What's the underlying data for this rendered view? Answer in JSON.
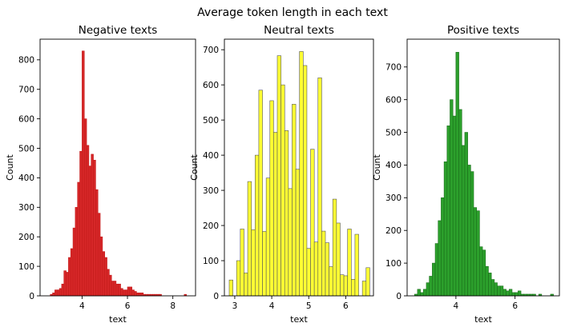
{
  "figure": {
    "suptitle": "Average token length in each text"
  },
  "chart_data": [
    {
      "type": "bar",
      "title": "Negative texts",
      "xlabel": "text",
      "ylabel": "Count",
      "color": "#d62728",
      "edge_color": "#c41a1a",
      "xlim": [
        2.15,
        9.0
      ],
      "ylim": [
        0,
        870
      ],
      "xticks": [
        4,
        6,
        8
      ],
      "yticks": [
        0,
        100,
        200,
        300,
        400,
        500,
        600,
        700,
        800
      ],
      "bins": {
        "x": [
          2.6,
          2.7,
          2.8,
          2.9,
          3.0,
          3.1,
          3.2,
          3.3,
          3.4,
          3.5,
          3.6,
          3.7,
          3.8,
          3.9,
          4.0,
          4.1,
          4.2,
          4.3,
          4.4,
          4.5,
          4.6,
          4.7,
          4.8,
          4.9,
          5.0,
          5.1,
          5.2,
          5.3,
          5.4,
          5.5,
          5.6,
          5.7,
          5.8,
          5.9,
          6.0,
          6.1,
          6.2,
          6.3,
          6.4,
          6.5,
          6.6,
          6.7,
          6.8,
          6.9,
          7.0,
          7.1,
          7.2,
          7.3,
          7.4,
          7.5,
          7.6,
          7.7,
          7.8,
          7.9,
          8.0,
          8.1,
          8.2,
          8.3,
          8.4,
          8.5,
          8.6,
          8.7
        ],
        "width": 0.1,
        "values": [
          5,
          10,
          20,
          20,
          25,
          40,
          85,
          80,
          130,
          160,
          230,
          300,
          385,
          490,
          830,
          600,
          510,
          440,
          480,
          460,
          360,
          280,
          200,
          150,
          130,
          90,
          70,
          50,
          50,
          40,
          40,
          25,
          20,
          20,
          30,
          30,
          20,
          15,
          10,
          10,
          10,
          5,
          5,
          5,
          5,
          5,
          5,
          5,
          5,
          0,
          0,
          0,
          0,
          0,
          0,
          0,
          0,
          0,
          0,
          5,
          0,
          0
        ]
      }
    },
    {
      "type": "bar",
      "title": "Neutral texts",
      "xlabel": "text",
      "ylabel": "Count",
      "color": "#ffff33",
      "edge_color": "#555555",
      "xlim": [
        2.72,
        6.75
      ],
      "ylim": [
        0,
        730
      ],
      "xticks": [
        3,
        4,
        5,
        6
      ],
      "yticks": [
        0,
        100,
        200,
        300,
        400,
        500,
        600,
        700
      ],
      "bins": {
        "x": [
          2.85,
          2.95,
          3.05,
          3.15,
          3.25,
          3.35,
          3.45,
          3.55,
          3.65,
          3.75,
          3.85,
          3.95,
          4.05,
          4.15,
          4.25,
          4.35,
          4.45,
          4.55,
          4.65,
          4.75,
          4.85,
          4.95,
          5.05,
          5.15,
          5.25,
          5.35,
          5.45,
          5.55,
          5.65,
          5.75,
          5.85,
          5.95,
          6.05,
          6.15,
          6.25,
          6.35,
          6.45,
          6.55
        ],
        "width": 0.1,
        "values": [
          45,
          0,
          100,
          190,
          65,
          325,
          188,
          400,
          585,
          183,
          335,
          555,
          465,
          683,
          600,
          470,
          305,
          545,
          360,
          695,
          655,
          135,
          417,
          153,
          620,
          184,
          151,
          83,
          275,
          207,
          60,
          57,
          190,
          47,
          175,
          0,
          42,
          80
        ]
      }
    },
    {
      "type": "bar",
      "title": "Positive texts",
      "xlabel": "text",
      "ylabel": "Count",
      "color": "#2ca02c",
      "edge_color": "#1a6e1a",
      "xlim": [
        2.35,
        7.5
      ],
      "ylim": [
        0,
        785
      ],
      "xticks": [
        4,
        6
      ],
      "yticks": [
        0,
        100,
        200,
        300,
        400,
        500,
        600,
        700
      ],
      "bins": {
        "x": [
          2.6,
          2.7,
          2.8,
          2.9,
          3.0,
          3.1,
          3.2,
          3.3,
          3.4,
          3.5,
          3.6,
          3.7,
          3.8,
          3.9,
          4.0,
          4.1,
          4.2,
          4.3,
          4.4,
          4.5,
          4.6,
          4.7,
          4.8,
          4.9,
          5.0,
          5.1,
          5.2,
          5.3,
          5.4,
          5.5,
          5.6,
          5.7,
          5.8,
          5.9,
          6.0,
          6.1,
          6.2,
          6.3,
          6.4,
          6.5,
          6.6,
          6.7,
          6.8,
          6.9,
          7.0,
          7.1,
          7.2
        ],
        "width": 0.1,
        "values": [
          5,
          20,
          10,
          20,
          40,
          60,
          100,
          160,
          230,
          300,
          410,
          520,
          600,
          550,
          745,
          570,
          460,
          500,
          400,
          380,
          270,
          260,
          150,
          140,
          90,
          70,
          50,
          40,
          30,
          30,
          20,
          15,
          20,
          10,
          10,
          15,
          5,
          5,
          5,
          5,
          5,
          0,
          5,
          0,
          0,
          0,
          5
        ]
      }
    }
  ]
}
